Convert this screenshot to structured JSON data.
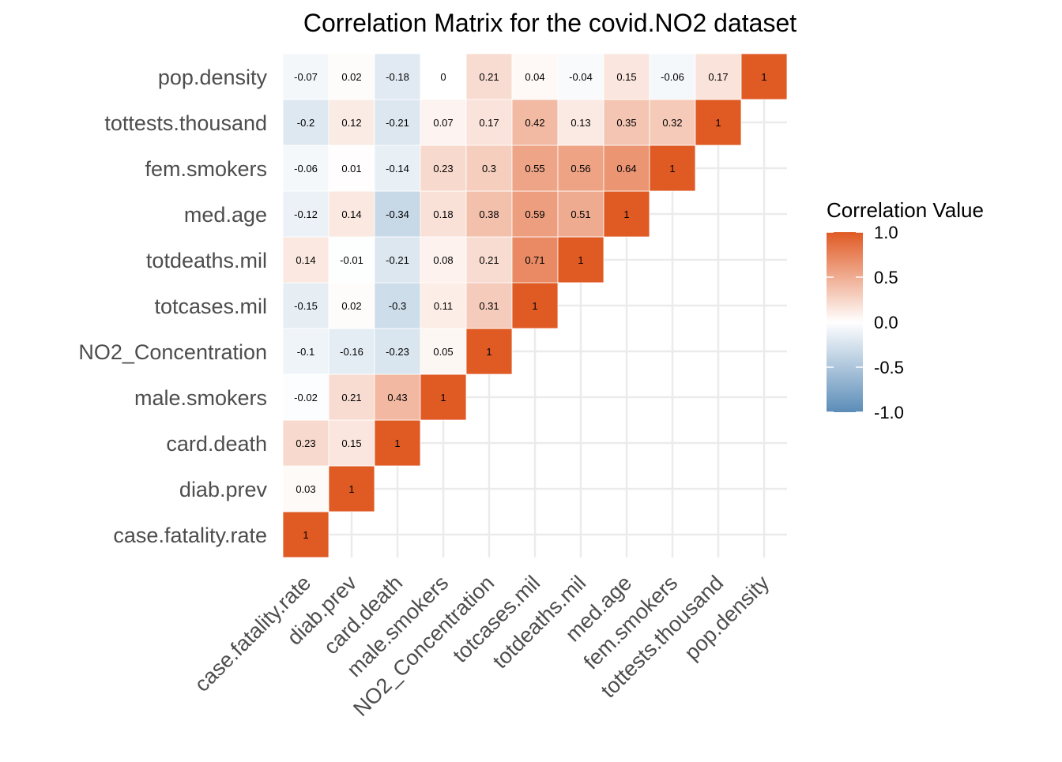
{
  "chart_data": {
    "type": "heatmap",
    "title": "Correlation Matrix for the covid.NO2 dataset",
    "variables": [
      "case.fatality.rate",
      "diab.prev",
      "card.death",
      "male.smokers",
      "NO2_Concentration",
      "totcases.mil",
      "totdeaths.mil",
      "med.age",
      "fem.smokers",
      "tottests.thousand",
      "pop.density"
    ],
    "matrix_shape": "lower-triangle",
    "values": [
      [
        1
      ],
      [
        0.03,
        1
      ],
      [
        0.23,
        0.15,
        1
      ],
      [
        -0.02,
        0.21,
        0.43,
        1
      ],
      [
        -0.1,
        -0.16,
        -0.23,
        0.05,
        1
      ],
      [
        -0.15,
        0.02,
        -0.3,
        0.11,
        0.31,
        1
      ],
      [
        0.14,
        -0.01,
        -0.21,
        0.08,
        0.21,
        0.71,
        1
      ],
      [
        -0.12,
        0.14,
        -0.34,
        0.18,
        0.38,
        0.59,
        0.51,
        1
      ],
      [
        -0.06,
        0.01,
        -0.14,
        0.23,
        0.3,
        0.55,
        0.56,
        0.64,
        1
      ],
      [
        -0.2,
        0.12,
        -0.21,
        0.07,
        0.17,
        0.42,
        0.13,
        0.35,
        0.32,
        1
      ],
      [
        -0.07,
        0.02,
        -0.18,
        0,
        0.21,
        0.04,
        -0.04,
        0.15,
        -0.06,
        0.17,
        1
      ]
    ],
    "legend": {
      "title": "Correlation Value",
      "ticks": [
        "1.0",
        "0.5",
        "0.0",
        "-0.5",
        "-1.0"
      ],
      "low_color": "#5b8db8",
      "mid_color": "#ffffff",
      "high_color": "#e05a24",
      "placement": "right"
    },
    "grid": true,
    "colors": {
      "cell_border": "#ffffff",
      "grid": "#ebebeb",
      "label_text": "#4d4d4d"
    }
  }
}
